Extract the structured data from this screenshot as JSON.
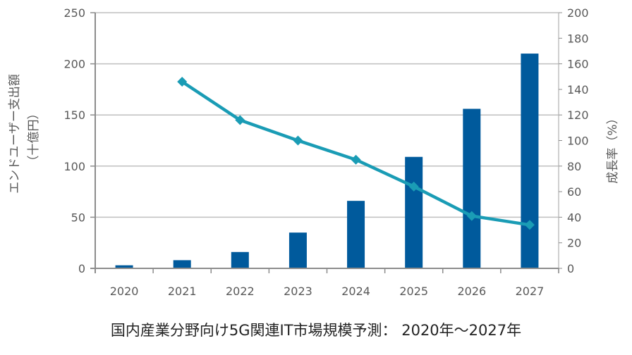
{
  "chart_data": {
    "type": "bar+line",
    "title": "国内産業分野向け5G関連IT市場規模予測： 2020年～2027年",
    "categories": [
      "2020",
      "2021",
      "2022",
      "2023",
      "2024",
      "2025",
      "2026",
      "2027"
    ],
    "series": [
      {
        "name": "エンドユーザー支出額",
        "type": "bar",
        "axis": "left",
        "color": "#005a9c",
        "values": [
          3,
          8,
          16,
          35,
          66,
          109,
          156,
          210
        ]
      },
      {
        "name": "成長率",
        "type": "line",
        "axis": "right",
        "color": "#1a9cb5",
        "marker": "diamond",
        "values": [
          null,
          146,
          116,
          100,
          85,
          64,
          41,
          34
        ]
      }
    ],
    "left_axis": {
      "label_line1": "エンドユーザー支出額",
      "label_line2": "（十億円）",
      "ylim": [
        0,
        250
      ],
      "ticks": [
        "0",
        "50",
        "100",
        "150",
        "200",
        "250"
      ]
    },
    "right_axis": {
      "label": "成長率（%）",
      "ylim": [
        0,
        200
      ],
      "ticks": [
        "0",
        "20",
        "40",
        "60",
        "80",
        "100",
        "120",
        "140",
        "160",
        "180",
        "200"
      ]
    },
    "grid": true,
    "legend": "none"
  }
}
